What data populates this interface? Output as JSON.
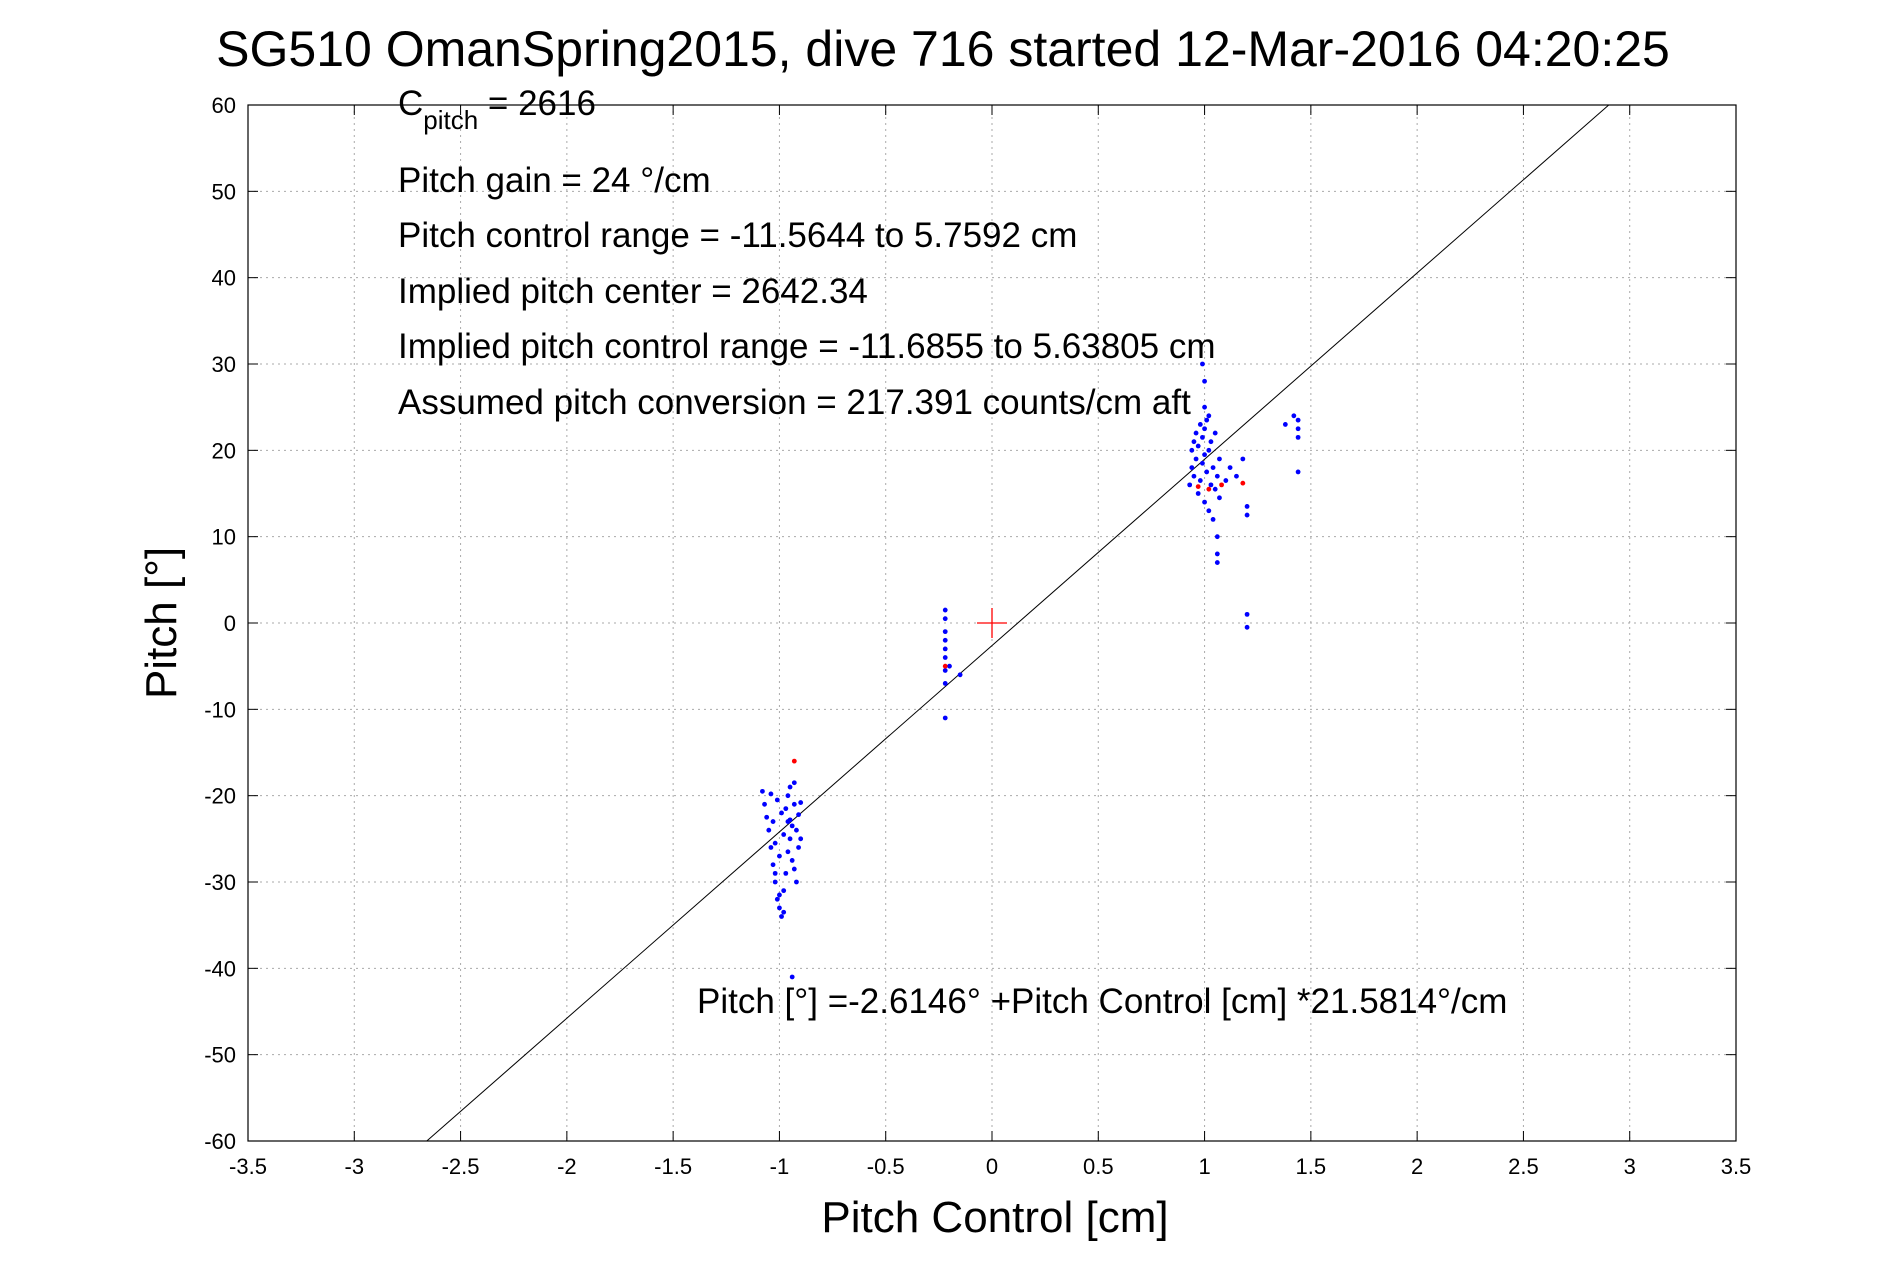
{
  "chart_data": {
    "type": "scatter",
    "title": "SG510 OmanSpring2015, dive 716 started 12-Mar-2016 04:20:25",
    "xlabel": "Pitch Control [cm]",
    "ylabel": "Pitch [°]",
    "xlim": [
      -3.5,
      3.5
    ],
    "ylim": [
      -60,
      60
    ],
    "grid": true,
    "x_ticks": [
      -3.5,
      -3,
      -2.5,
      -2,
      -1.5,
      -1,
      -0.5,
      0,
      0.5,
      1,
      1.5,
      2,
      2.5,
      3,
      3.5
    ],
    "x_tick_labels": [
      "-3.5",
      "-3",
      "-2.5",
      "-2",
      "-1.5",
      "-1",
      "-0.5",
      "0",
      "0.5",
      "1",
      "1.5",
      "2",
      "2.5",
      "3",
      "3.5"
    ],
    "y_ticks": [
      -60,
      -50,
      -40,
      -30,
      -20,
      -10,
      0,
      10,
      20,
      30,
      40,
      50,
      60
    ],
    "y_tick_labels": [
      "-60",
      "-50",
      "-40",
      "-30",
      "-20",
      "-10",
      "0",
      "10",
      "20",
      "30",
      "40",
      "50",
      "60"
    ],
    "annotations": {
      "c_pitch_symbol": "C",
      "c_pitch_subscript": "pitch",
      "c_pitch_value": " = 2616",
      "lines": [
        "Pitch gain = 24 °/cm",
        "Pitch control range = -11.5644 to 5.7592 cm",
        "Implied pitch center = 2642.34",
        "Implied pitch control range = -11.6855 to 5.63805 cm",
        "Assumed pitch conversion = 217.391 counts/cm aft"
      ],
      "fit_equation": "Pitch [°] =-2.6146° +Pitch Control [cm] *21.5814°/cm"
    },
    "fit_line": {
      "intercept": -2.6146,
      "slope": 21.5814
    },
    "center_marker": {
      "x": 0,
      "y": 0,
      "color": "#ff0000"
    },
    "series": [
      {
        "color": "#0000ff",
        "points": [
          [
            -1.08,
            -19.5
          ],
          [
            -1.07,
            -21
          ],
          [
            -1.06,
            -22.5
          ],
          [
            -1.05,
            -24
          ],
          [
            -1.04,
            -26
          ],
          [
            -1.04,
            -19.8
          ],
          [
            -1.03,
            -28
          ],
          [
            -1.03,
            -23
          ],
          [
            -1.02,
            -30
          ],
          [
            -1.02,
            -25.5
          ],
          [
            -1.01,
            -32
          ],
          [
            -1.01,
            -20.5
          ],
          [
            -1.0,
            -33
          ],
          [
            -1.0,
            -27
          ],
          [
            -0.99,
            -34
          ],
          [
            -0.99,
            -22
          ],
          [
            -0.98,
            -31
          ],
          [
            -0.98,
            -24.5
          ],
          [
            -0.97,
            -29
          ],
          [
            -0.97,
            -21.5
          ],
          [
            -0.96,
            -26.5
          ],
          [
            -0.96,
            -20
          ],
          [
            -0.95,
            -25
          ],
          [
            -0.95,
            -22.8
          ],
          [
            -0.94,
            -23.5
          ],
          [
            -0.94,
            -27.5
          ],
          [
            -0.93,
            -21
          ],
          [
            -0.93,
            -28.5
          ],
          [
            -0.92,
            -24
          ],
          [
            -0.92,
            -30
          ],
          [
            -0.91,
            -22.2
          ],
          [
            -0.91,
            -26
          ],
          [
            -0.9,
            -20.8
          ],
          [
            -0.9,
            -25
          ],
          [
            -0.93,
            -18.5
          ],
          [
            -0.95,
            -19
          ],
          [
            -1.0,
            -31.5
          ],
          [
            -1.02,
            -29
          ],
          [
            -0.98,
            -33.5
          ],
          [
            -0.96,
            -23
          ],
          [
            -0.94,
            -41
          ],
          [
            -0.22,
            1.5
          ],
          [
            -0.22,
            0.5
          ],
          [
            -0.22,
            -1
          ],
          [
            -0.22,
            -2
          ],
          [
            -0.22,
            -3
          ],
          [
            -0.22,
            -4
          ],
          [
            -0.22,
            -5.5
          ],
          [
            -0.22,
            -7
          ],
          [
            -0.22,
            -11
          ],
          [
            -0.2,
            -5
          ],
          [
            -0.15,
            -6
          ],
          [
            0.93,
            16
          ],
          [
            0.94,
            18
          ],
          [
            0.94,
            20
          ],
          [
            0.95,
            21
          ],
          [
            0.95,
            17
          ],
          [
            0.96,
            19
          ],
          [
            0.96,
            22
          ],
          [
            0.97,
            15
          ],
          [
            0.97,
            20.5
          ],
          [
            0.98,
            16.5
          ],
          [
            0.98,
            23
          ],
          [
            0.99,
            18.5
          ],
          [
            0.99,
            21.5
          ],
          [
            1.0,
            14
          ],
          [
            1.0,
            19.5
          ],
          [
            1.0,
            22.5
          ],
          [
            1.01,
            17.5
          ],
          [
            1.01,
            23.5
          ],
          [
            1.02,
            13
          ],
          [
            1.02,
            20
          ],
          [
            1.03,
            16
          ],
          [
            1.03,
            21
          ],
          [
            1.04,
            18
          ],
          [
            1.04,
            12
          ],
          [
            1.05,
            15.5
          ],
          [
            1.05,
            22
          ],
          [
            1.06,
            17
          ],
          [
            1.06,
            10
          ],
          [
            1.07,
            19
          ],
          [
            1.07,
            14.5
          ],
          [
            1.06,
            8
          ],
          [
            1.06,
            7
          ],
          [
            1.0,
            28
          ],
          [
            0.99,
            30
          ],
          [
            1.0,
            25
          ],
          [
            1.02,
            24
          ],
          [
            1.1,
            16.5
          ],
          [
            1.12,
            18
          ],
          [
            1.15,
            17
          ],
          [
            1.18,
            19
          ],
          [
            1.2,
            13.5
          ],
          [
            1.2,
            12.5
          ],
          [
            1.2,
            1
          ],
          [
            1.2,
            -0.5
          ],
          [
            1.44,
            17.5
          ],
          [
            1.44,
            21.5
          ],
          [
            1.44,
            22.5
          ],
          [
            1.44,
            23.5
          ],
          [
            1.42,
            24
          ],
          [
            1.38,
            23
          ]
        ]
      },
      {
        "color": "#ff0000",
        "points": [
          [
            -0.93,
            -16
          ],
          [
            -0.22,
            -5
          ],
          [
            0.97,
            15.8
          ],
          [
            1.02,
            15.5
          ],
          [
            1.08,
            16
          ],
          [
            1.18,
            16.2
          ]
        ]
      }
    ]
  }
}
